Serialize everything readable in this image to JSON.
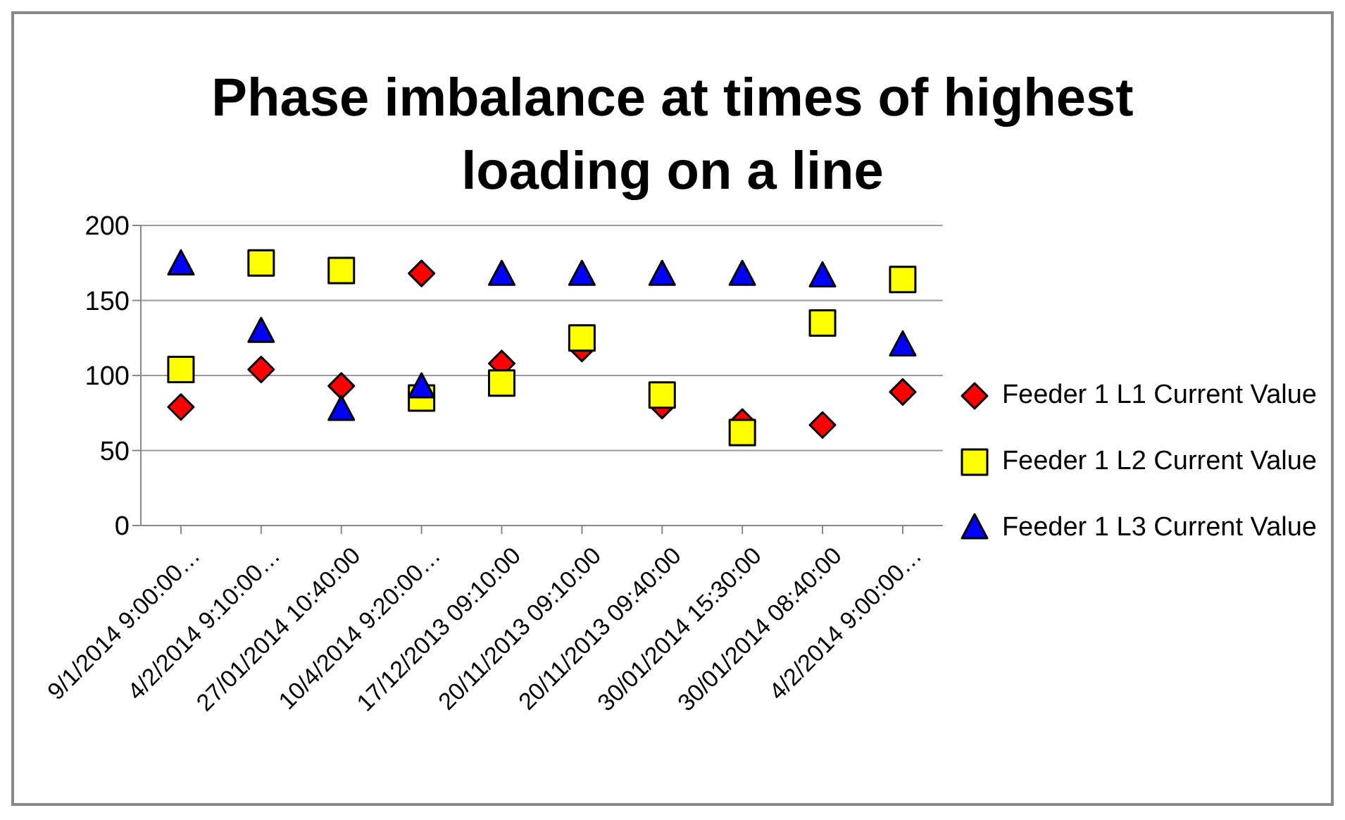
{
  "chart_data": {
    "type": "scatter",
    "title": "Phase imbalance at times of highest loading on a line",
    "categories": [
      "9/1/2014 9:00:00…",
      "4/2/2014 9:10:00…",
      "27/01/2014 10:40:00",
      "10/4/2014 9:20:00…",
      "17/12/2013 09:10:00",
      "20/11/2013 09:10:00",
      "20/11/2013 09:40:00",
      "30/01/2014 15:30:00",
      "30/01/2014 08:40:00",
      "4/2/2014 9:00:00…"
    ],
    "series": [
      {
        "name": "Feeder 1 L1 Current Value",
        "color": "#ff0000",
        "marker": "diamond",
        "values": [
          79,
          104,
          93,
          168,
          108,
          118,
          80,
          69,
          67,
          89
        ]
      },
      {
        "name": "Feeder 1 L2 Current Value",
        "color": "#ffff00",
        "marker": "square",
        "values": [
          104,
          175,
          170,
          85,
          95,
          125,
          87,
          62,
          135,
          164
        ]
      },
      {
        "name": "Feeder 1 L3 Current Value",
        "color": "#0000ff",
        "marker": "triangle",
        "values": [
          174,
          129,
          77,
          92,
          167,
          167,
          167,
          167,
          166,
          120
        ]
      }
    ],
    "ylim": [
      0,
      200
    ],
    "yticks": [
      0,
      50,
      100,
      150,
      200
    ],
    "grid": "y",
    "legend": "right"
  }
}
